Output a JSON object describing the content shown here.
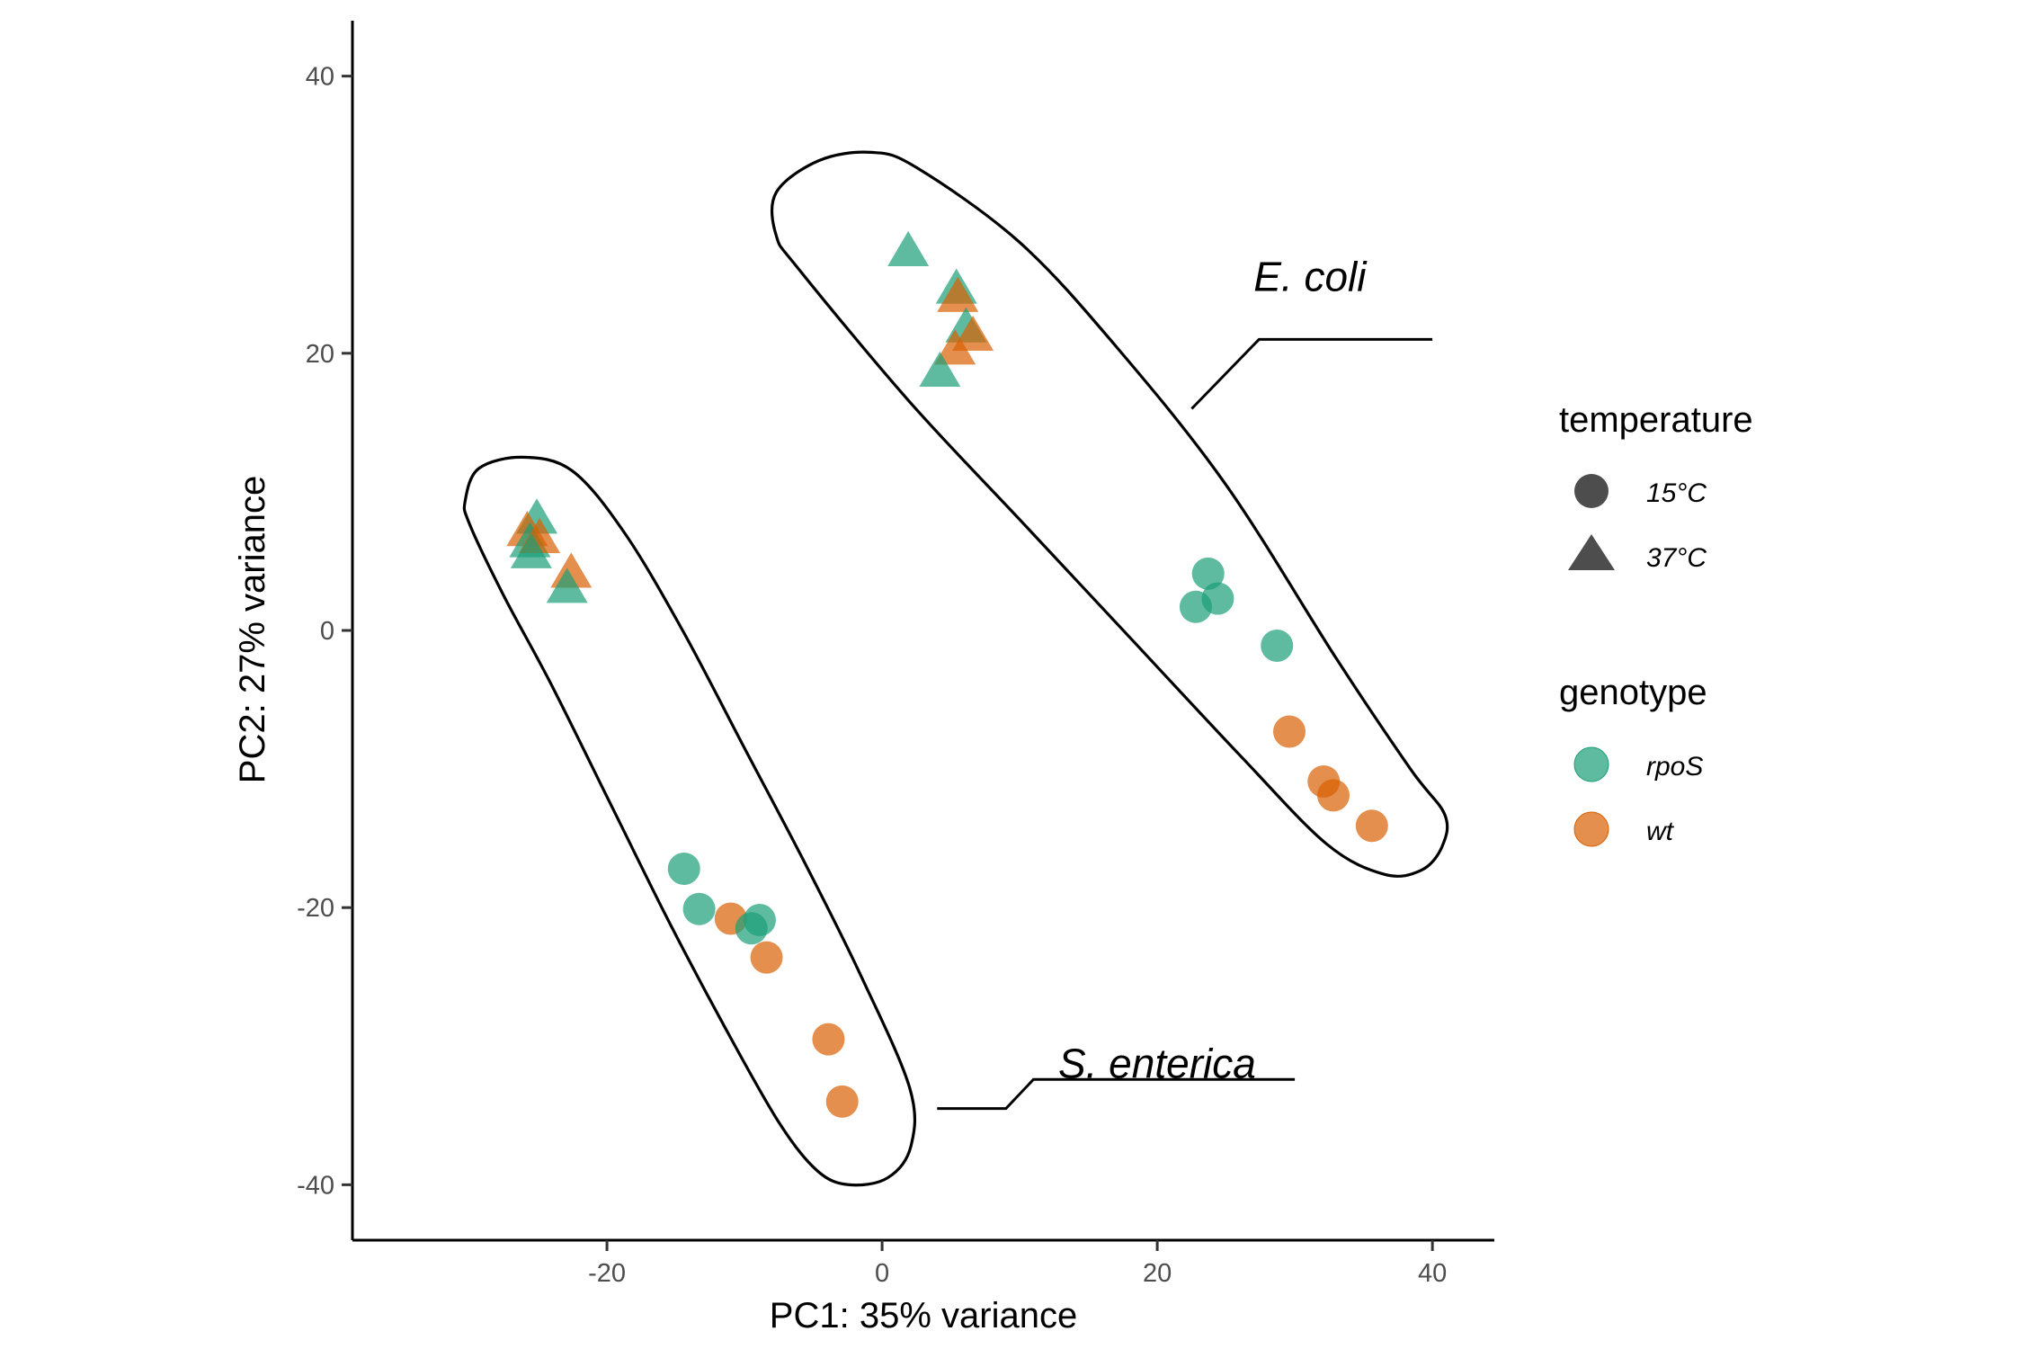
{
  "chart_data": {
    "type": "scatter",
    "xlabel": "PC1: 35% variance",
    "ylabel": "PC2: 27% variance",
    "xlim": [
      -38.5,
      44.5
    ],
    "ylim": [
      -44,
      44
    ],
    "xticks": [
      -20,
      0,
      20,
      40
    ],
    "yticks": [
      -40,
      -20,
      0,
      20,
      40
    ],
    "xtick_labels": [
      "-20",
      "0",
      "20",
      "40"
    ],
    "ytick_labels": [
      "-40",
      "-20",
      "0",
      "20",
      "40"
    ],
    "grid": false,
    "legend_position": "right",
    "colors": {
      "rpoS": "#1b9e77",
      "wt": "#d95f02",
      "shape_key": "#4d4d4d"
    },
    "legends": [
      {
        "title": "temperature",
        "kind": "shape",
        "entries": [
          {
            "label": "15°C",
            "shape": "circle"
          },
          {
            "label": "37°C",
            "shape": "triangle"
          }
        ]
      },
      {
        "title": "genotype",
        "kind": "color",
        "entries": [
          {
            "label": "rpoS",
            "genotype": "rpoS"
          },
          {
            "label": "wt",
            "genotype": "wt"
          }
        ]
      }
    ],
    "points": [
      {
        "x": 1.9,
        "y": 27.3,
        "genotype": "rpoS",
        "temperature": "37°C"
      },
      {
        "x": 5.4,
        "y": 24.6,
        "genotype": "rpoS",
        "temperature": "37°C"
      },
      {
        "x": 5.5,
        "y": 24.0,
        "genotype": "wt",
        "temperature": "37°C"
      },
      {
        "x": 6.1,
        "y": 21.8,
        "genotype": "rpoS",
        "temperature": "37°C"
      },
      {
        "x": 6.6,
        "y": 21.2,
        "genotype": "wt",
        "temperature": "37°C"
      },
      {
        "x": 5.3,
        "y": 20.2,
        "genotype": "wt",
        "temperature": "37°C"
      },
      {
        "x": 4.2,
        "y": 18.6,
        "genotype": "rpoS",
        "temperature": "37°C"
      },
      {
        "x": 23.7,
        "y": 4.1,
        "genotype": "rpoS",
        "temperature": "15°C"
      },
      {
        "x": 24.4,
        "y": 2.3,
        "genotype": "rpoS",
        "temperature": "15°C"
      },
      {
        "x": 22.8,
        "y": 1.7,
        "genotype": "rpoS",
        "temperature": "15°C"
      },
      {
        "x": 28.7,
        "y": -1.1,
        "genotype": "rpoS",
        "temperature": "15°C"
      },
      {
        "x": 29.6,
        "y": -7.3,
        "genotype": "wt",
        "temperature": "15°C"
      },
      {
        "x": 32.1,
        "y": -10.9,
        "genotype": "wt",
        "temperature": "15°C"
      },
      {
        "x": 32.8,
        "y": -11.9,
        "genotype": "wt",
        "temperature": "15°C"
      },
      {
        "x": 35.6,
        "y": -14.1,
        "genotype": "wt",
        "temperature": "15°C"
      },
      {
        "x": -25.1,
        "y": 8.0,
        "genotype": "rpoS",
        "temperature": "37°C"
      },
      {
        "x": -25.8,
        "y": 7.1,
        "genotype": "wt",
        "temperature": "37°C"
      },
      {
        "x": -25.6,
        "y": 6.3,
        "genotype": "rpoS",
        "temperature": "37°C"
      },
      {
        "x": -24.9,
        "y": 6.6,
        "genotype": "wt",
        "temperature": "37°C"
      },
      {
        "x": -25.5,
        "y": 5.5,
        "genotype": "rpoS",
        "temperature": "37°C"
      },
      {
        "x": -22.6,
        "y": 4.1,
        "genotype": "wt",
        "temperature": "37°C"
      },
      {
        "x": -22.9,
        "y": 3.0,
        "genotype": "rpoS",
        "temperature": "37°C"
      },
      {
        "x": -14.4,
        "y": -17.2,
        "genotype": "rpoS",
        "temperature": "15°C"
      },
      {
        "x": -13.3,
        "y": -20.1,
        "genotype": "rpoS",
        "temperature": "15°C"
      },
      {
        "x": -11.0,
        "y": -20.8,
        "genotype": "wt",
        "temperature": "15°C"
      },
      {
        "x": -8.9,
        "y": -20.9,
        "genotype": "rpoS",
        "temperature": "15°C"
      },
      {
        "x": -9.5,
        "y": -21.5,
        "genotype": "rpoS",
        "temperature": "15°C"
      },
      {
        "x": -8.4,
        "y": -23.6,
        "genotype": "wt",
        "temperature": "15°C"
      },
      {
        "x": -3.9,
        "y": -29.5,
        "genotype": "wt",
        "temperature": "15°C"
      },
      {
        "x": -2.9,
        "y": -34.0,
        "genotype": "wt",
        "temperature": "15°C"
      }
    ],
    "annotations": [
      {
        "text": "E. coli",
        "x": 27,
        "y": 24.5,
        "outline": [
          [
            -7.7,
            31.6
          ],
          [
            -4.6,
            33.9
          ],
          [
            -0.8,
            34.5
          ],
          [
            2.5,
            33.4
          ],
          [
            10,
            28
          ],
          [
            17,
            20.5
          ],
          [
            25,
            10.5
          ],
          [
            33,
            -2
          ],
          [
            38.4,
            -10
          ],
          [
            40.9,
            -13.3
          ],
          [
            40.7,
            -15.6
          ],
          [
            39.2,
            -17.3
          ],
          [
            36.5,
            -17.6
          ],
          [
            32.3,
            -15.4
          ],
          [
            26,
            -9
          ],
          [
            18,
            -0.5
          ],
          [
            10,
            8
          ],
          [
            2,
            16.5
          ],
          [
            -6,
            26
          ],
          [
            -7.7,
            28.5
          ]
        ],
        "leader": [
          [
            22.5,
            16
          ],
          [
            27.4,
            21.0
          ],
          [
            40,
            21.0
          ]
        ]
      },
      {
        "text": "S. enterica",
        "x": 12.8,
        "y": -32.3,
        "outline": [
          [
            -30.3,
            9.4
          ],
          [
            -29.3,
            11.7
          ],
          [
            -26.1,
            12.5
          ],
          [
            -22.5,
            11.5
          ],
          [
            -18.7,
            7
          ],
          [
            -14.5,
            0
          ],
          [
            -10,
            -8.5
          ],
          [
            -5.5,
            -17
          ],
          [
            -1.5,
            -25
          ],
          [
            2,
            -33
          ],
          [
            2.1,
            -37.2
          ],
          [
            0.4,
            -39.5
          ],
          [
            -2.4,
            -40
          ],
          [
            -4.7,
            -39
          ],
          [
            -7.5,
            -35.5
          ],
          [
            -11.5,
            -28.5
          ],
          [
            -15.5,
            -21
          ],
          [
            -19.5,
            -13
          ],
          [
            -24,
            -4
          ],
          [
            -27.5,
            2.5
          ],
          [
            -30,
            7.7
          ]
        ],
        "leader": [
          [
            4,
            -34.5
          ],
          [
            9,
            -34.5
          ],
          [
            11,
            -32.4
          ],
          [
            30,
            -32.4
          ]
        ]
      }
    ]
  }
}
